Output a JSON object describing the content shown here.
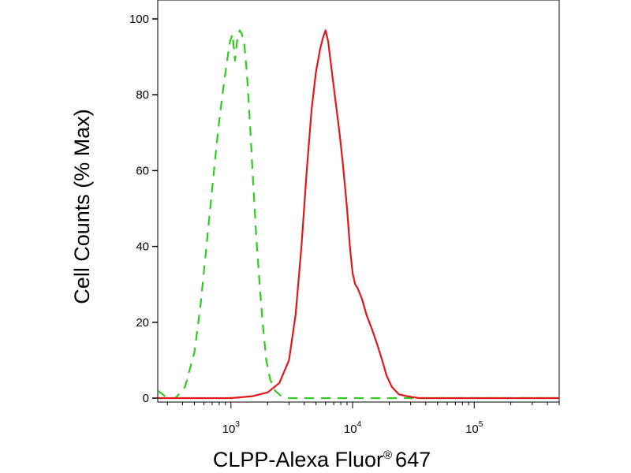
{
  "chart_data": {
    "type": "line",
    "xlabel": "CLPP-Alexa Fluor",
    "xlabel_mark": "®",
    "xlabel_suffix": "647",
    "ylabel": "Cell Counts (% Max)",
    "x_scale": "log",
    "xlim": [
      250,
      500000
    ],
    "ylim": [
      0,
      100
    ],
    "grid": false,
    "y_ticks": [
      0,
      20,
      40,
      60,
      80,
      100
    ],
    "x_tick_labels": [
      {
        "value": 1000,
        "base": "10",
        "exp": "3"
      },
      {
        "value": 10000,
        "base": "10",
        "exp": "4"
      },
      {
        "value": 100000,
        "base": "10",
        "exp": "5"
      }
    ],
    "series": [
      {
        "color": "#2ecc1f",
        "dash": "dashed",
        "x": [
          250,
          300,
          350,
          420,
          500,
          560,
          620,
          700,
          780,
          850,
          920,
          980,
          1030,
          1080,
          1130,
          1180,
          1230,
          1290,
          1350,
          1430,
          1520,
          1620,
          1720,
          1820,
          1950,
          2100,
          2300,
          2600,
          3000,
          5000,
          10000,
          50000,
          500000
        ],
        "y": [
          2,
          0,
          0,
          3,
          12,
          24,
          38,
          55,
          70,
          80,
          88,
          94,
          96,
          89,
          95,
          97,
          96,
          93,
          86,
          73,
          57,
          42,
          30,
          20,
          10,
          5,
          2,
          0.5,
          0,
          0,
          0,
          0,
          0
        ]
      },
      {
        "color": "#e01818",
        "dash": "solid",
        "x": [
          250,
          1000,
          1500,
          2000,
          2500,
          3000,
          3400,
          3800,
          4200,
          4600,
          5000,
          5400,
          5700,
          6000,
          6300,
          6700,
          7200,
          7800,
          8300,
          9000,
          9500,
          10000,
          10500,
          11000,
          12000,
          13000,
          14500,
          16000,
          17500,
          19000,
          21000,
          24000,
          28000,
          35000,
          50000,
          500000
        ],
        "y": [
          0,
          0,
          0.5,
          1.5,
          4,
          10,
          22,
          40,
          60,
          76,
          86,
          92,
          95,
          97,
          94,
          87,
          79,
          70,
          62,
          50,
          40,
          33,
          30,
          29,
          26,
          22,
          18,
          14,
          10,
          6,
          3,
          1,
          0.5,
          0,
          0,
          0
        ]
      }
    ]
  }
}
